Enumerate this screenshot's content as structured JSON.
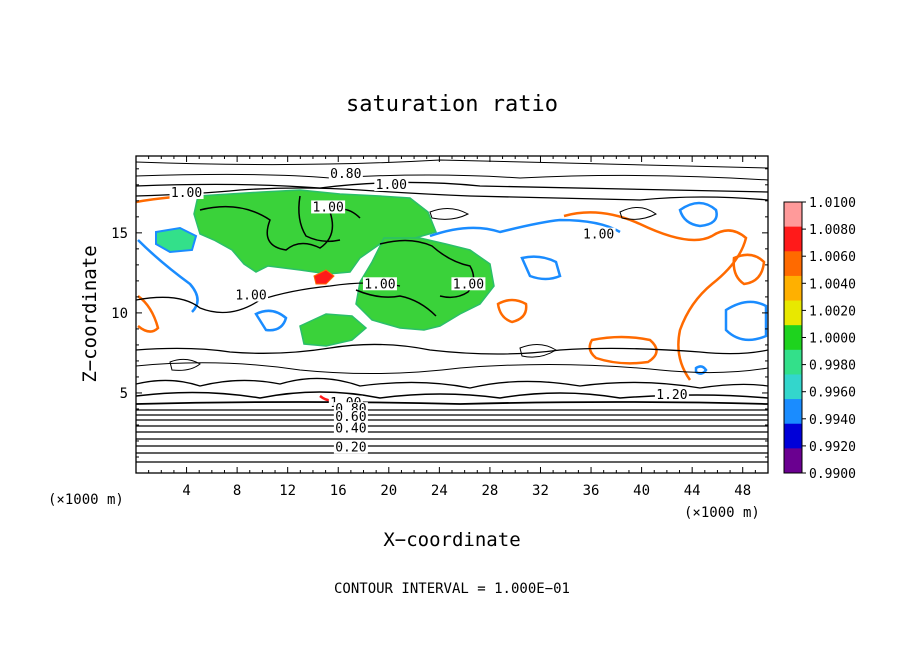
{
  "chart_data": {
    "type": "heatmap",
    "title": "saturation ratio",
    "xlabel": "X−coordinate",
    "ylabel": "Z−coordinate",
    "x_unit_left": "(×1000 m)",
    "x_unit_right": "(×1000 m)",
    "xlim": [
      0,
      50
    ],
    "ylim": [
      0,
      19.8
    ],
    "xticks": [
      4,
      8,
      12,
      16,
      20,
      24,
      28,
      32,
      36,
      40,
      44,
      48
    ],
    "yticks": [
      5,
      10,
      15
    ],
    "footer": "CONTOUR INTERVAL = 1.000E−01",
    "colorbar": {
      "levels": [
        "1.0100",
        "1.0080",
        "1.0060",
        "1.0040",
        "1.0020",
        "1.0000",
        "0.9980",
        "0.9960",
        "0.9940",
        "0.9920",
        "0.9900"
      ],
      "colors": [
        "#ff9a9a",
        "#ff1a1a",
        "#ff6a00",
        "#ffb000",
        "#e8e800",
        "#1ed31e",
        "#33e08a",
        "#33d6cc",
        "#1a8cff",
        "#0000d8",
        "#6a0090"
      ]
    },
    "contour_labels": [
      {
        "text": "1.00",
        "x": 4.0,
        "z": 17.3
      },
      {
        "text": "0.80",
        "x": 16.6,
        "z": 18.5
      },
      {
        "text": "1.00",
        "x": 20.2,
        "z": 17.8
      },
      {
        "text": "1.00",
        "x": 15.2,
        "z": 16.4
      },
      {
        "text": "1.00",
        "x": 36.6,
        "z": 14.7
      },
      {
        "text": "1.00",
        "x": 26.3,
        "z": 11.6
      },
      {
        "text": "1.00",
        "x": 19.3,
        "z": 11.6
      },
      {
        "text": "1.00",
        "x": 9.1,
        "z": 10.9
      },
      {
        "text": "1.20",
        "x": 42.4,
        "z": 4.7
      },
      {
        "text": "1.00",
        "x": 16.6,
        "z": 4.2
      },
      {
        "text": "0.80",
        "x": 17.0,
        "z": 3.8
      },
      {
        "text": "0.60",
        "x": 17.0,
        "z": 3.3
      },
      {
        "text": "0.40",
        "x": 17.0,
        "z": 2.6
      },
      {
        "text": "0.20",
        "x": 17.0,
        "z": 1.4
      }
    ]
  }
}
